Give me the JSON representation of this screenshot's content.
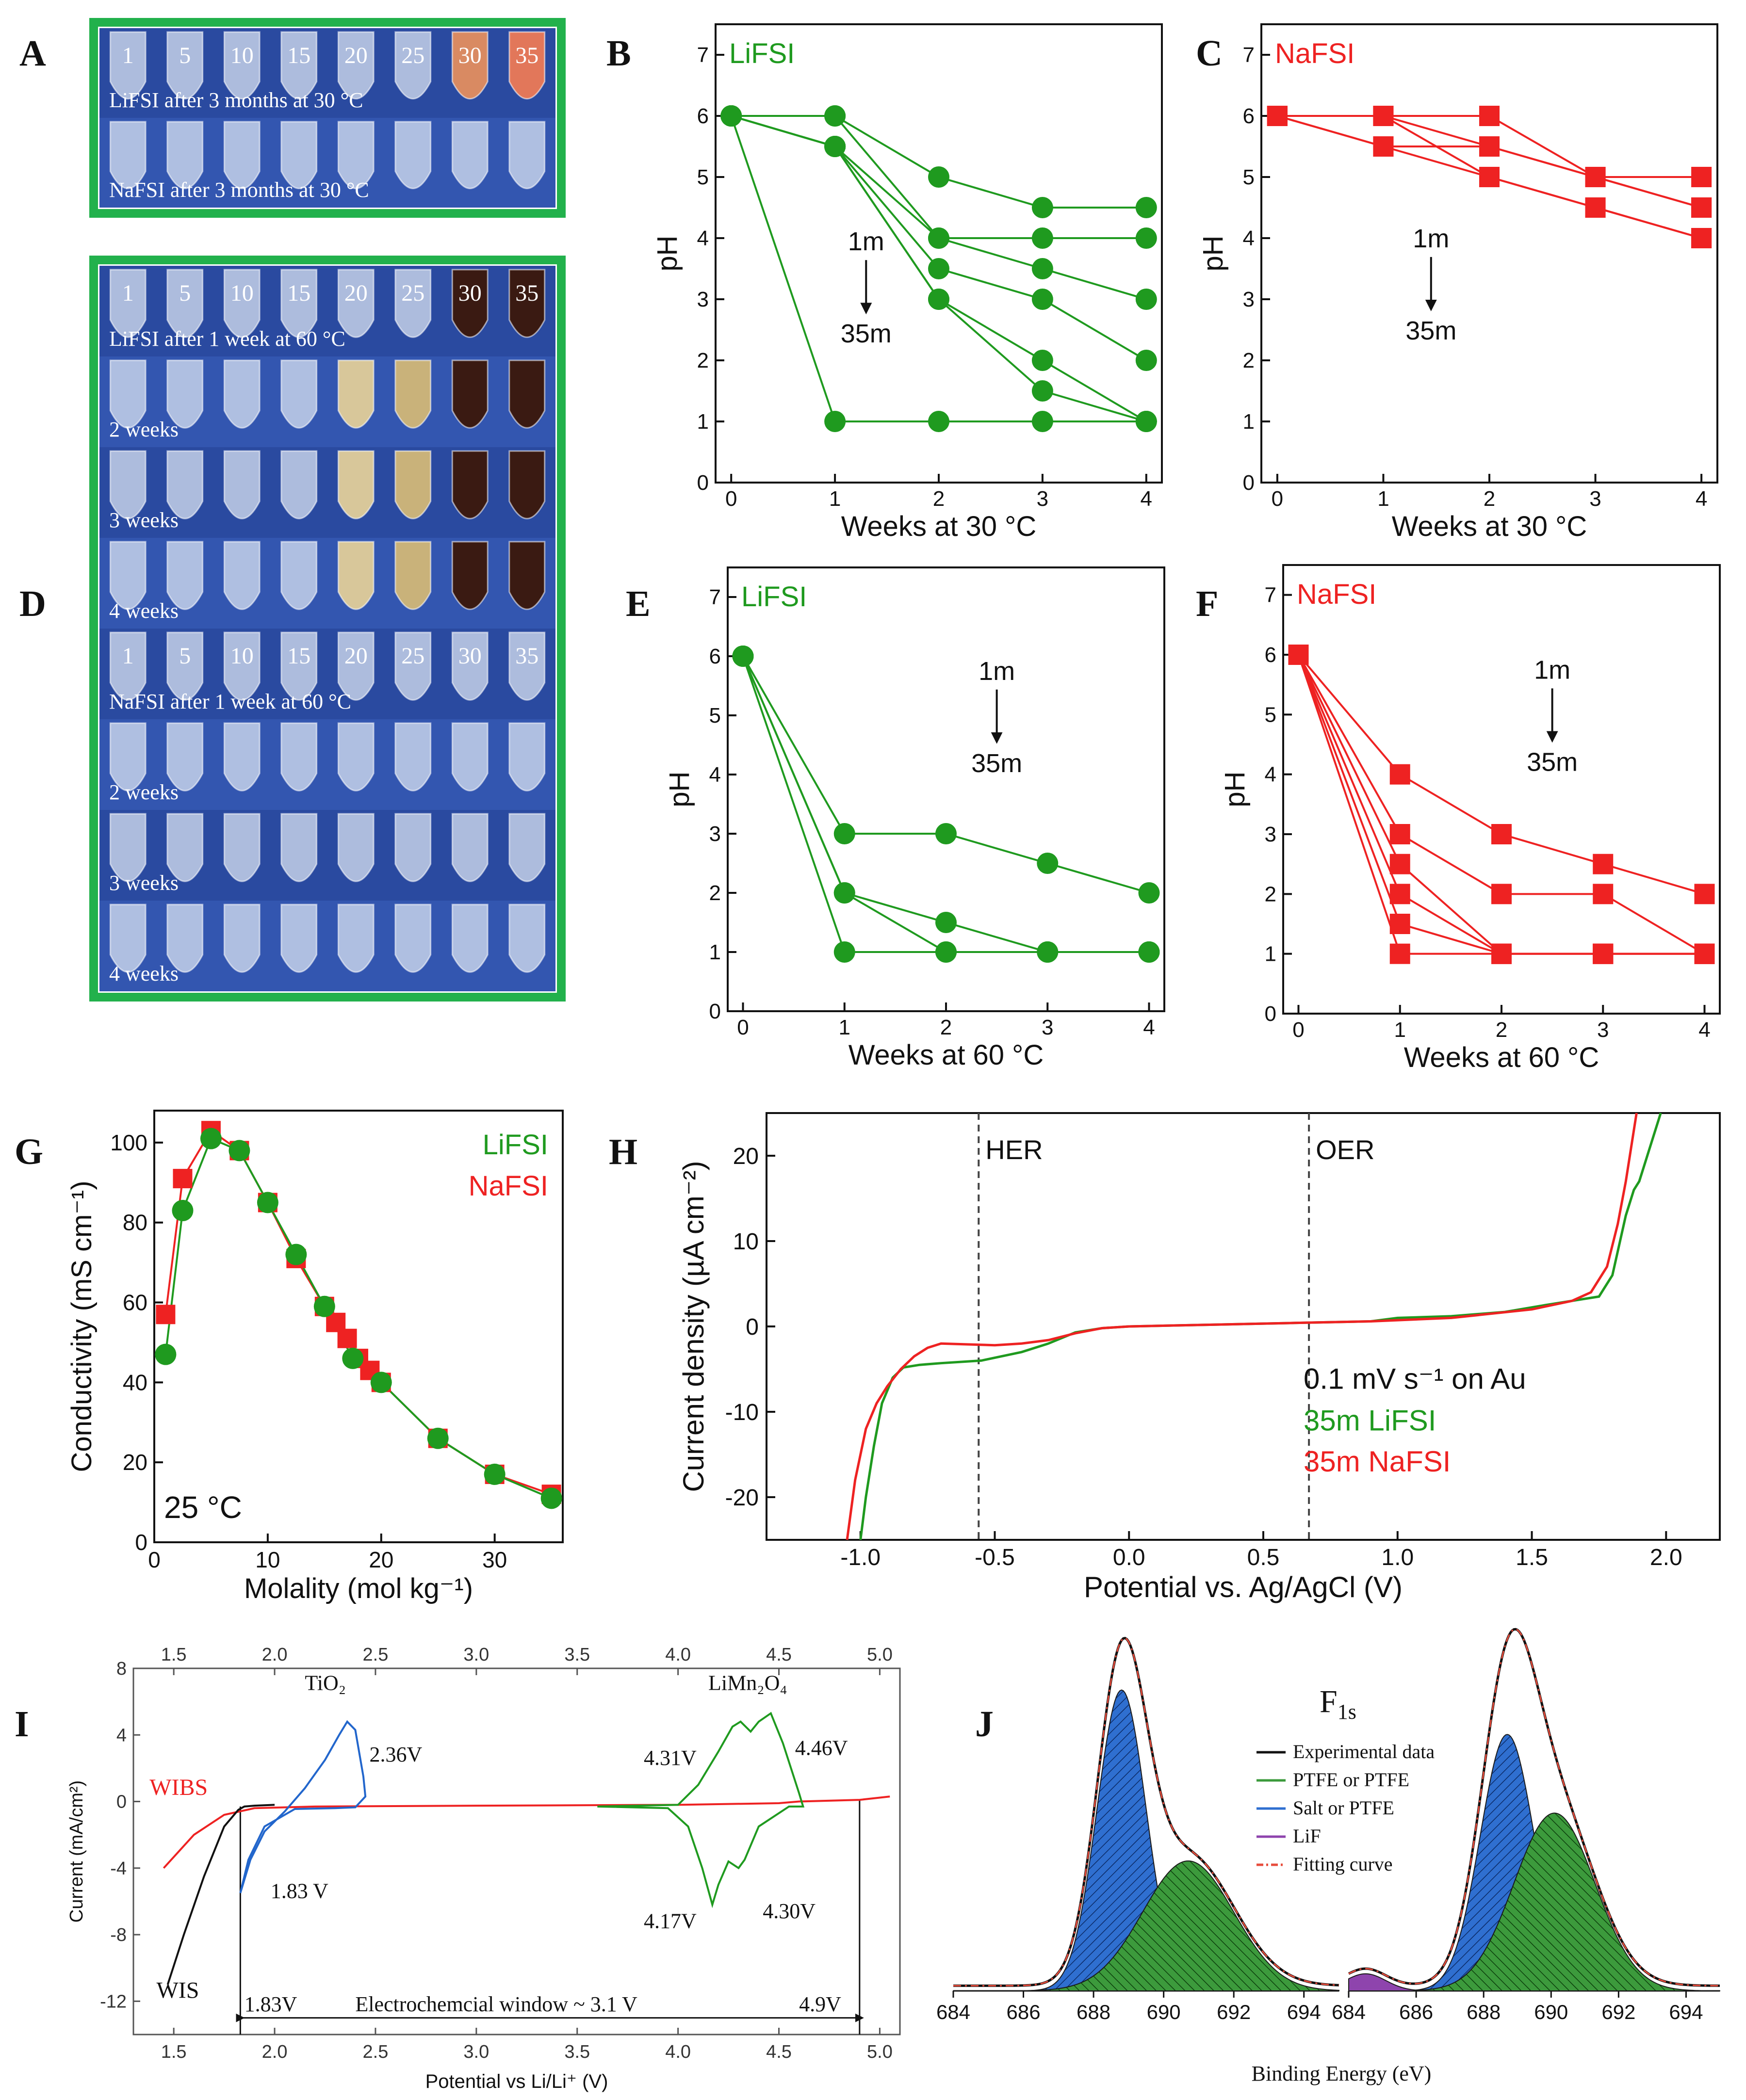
{
  "panel_letters": {
    "A": "A",
    "B": "B",
    "C": "C",
    "D": "D",
    "E": "E",
    "F": "F",
    "G": "G",
    "H": "H",
    "I": "I",
    "J": "J"
  },
  "colors": {
    "green": "#1f9a1f",
    "red": "#ee2222",
    "blue": "#2266cc",
    "black": "#111111",
    "photo_frame": "#22b14c",
    "photo_bg": "#2d4fa8"
  },
  "photos": {
    "A": {
      "tube_labels": [
        "1",
        "5",
        "10",
        "15",
        "20",
        "25",
        "30",
        "35"
      ],
      "row_labels": [
        "LiFSI after 3 months at 30 °C",
        "NaFSI after 3 months at 30 °C"
      ],
      "discolored": [
        [
          6,
          "#d98a62"
        ],
        [
          7,
          "#e2775a"
        ]
      ]
    },
    "D": {
      "tube_labels": [
        "1",
        "5",
        "10",
        "15",
        "20",
        "25",
        "30",
        "35"
      ],
      "row_labels": [
        "LiFSI after 1 week at 60 °C",
        "2 weeks",
        "3 weeks",
        "4 weeks",
        "NaFSI after 1 week at 60 °C",
        "2 weeks",
        "3 weeks",
        "4 weeks"
      ]
    }
  },
  "chart_data": [
    {
      "id": "B",
      "type": "line",
      "label": "LiFSI",
      "xlabel": "Weeks at 30 °C",
      "ylabel": "pH",
      "xlim": [
        0,
        4
      ],
      "ylim": [
        0,
        7.5
      ],
      "xticks": [
        0,
        1,
        2,
        3,
        4
      ],
      "yticks": [
        0,
        1,
        2,
        3,
        4,
        5,
        6,
        7
      ],
      "marker": "circle",
      "color": "green",
      "annotation": {
        "from": "1m",
        "to": "35m"
      },
      "x": [
        0,
        1,
        2,
        3,
        4
      ],
      "series": [
        [
          6,
          6,
          5,
          4.5,
          4.5
        ],
        [
          6,
          6,
          4,
          4,
          4
        ],
        [
          6,
          5.5,
          4,
          3.5,
          3
        ],
        [
          6,
          5.5,
          3.5,
          3,
          2
        ],
        [
          6,
          5.5,
          3,
          2,
          1
        ],
        [
          6,
          5.5,
          3,
          1.5,
          1
        ],
        [
          6,
          1,
          1,
          1,
          1
        ]
      ]
    },
    {
      "id": "C",
      "type": "line",
      "label": "NaFSI",
      "xlabel": "Weeks at 30 °C",
      "ylabel": "pH",
      "xlim": [
        0,
        4
      ],
      "ylim": [
        0,
        7.5
      ],
      "xticks": [
        0,
        1,
        2,
        3,
        4
      ],
      "yticks": [
        0,
        1,
        2,
        3,
        4,
        5,
        6,
        7
      ],
      "marker": "square",
      "color": "red",
      "annotation": {
        "from": "1m",
        "to": "35m"
      },
      "x": [
        0,
        1,
        2,
        3,
        4
      ],
      "series": [
        [
          6,
          6,
          6,
          5,
          5
        ],
        [
          6,
          6,
          5.5,
          5,
          4.5
        ],
        [
          6,
          5.5,
          5.5,
          5,
          4.5
        ],
        [
          6,
          5.5,
          5,
          4.5,
          4
        ],
        [
          6,
          6,
          5,
          4.5,
          4
        ]
      ]
    },
    {
      "id": "E",
      "type": "line",
      "label": "LiFSI",
      "xlabel": "Weeks at 60 °C",
      "ylabel": "pH",
      "xlim": [
        0,
        4
      ],
      "ylim": [
        0,
        7.5
      ],
      "xticks": [
        0,
        1,
        2,
        3,
        4
      ],
      "yticks": [
        0,
        1,
        2,
        3,
        4,
        5,
        6,
        7
      ],
      "marker": "circle",
      "color": "green",
      "annotation": {
        "from": "1m",
        "to": "35m"
      },
      "x": [
        0,
        1,
        2,
        3,
        4
      ],
      "series": [
        [
          6,
          3,
          3,
          2.5,
          2
        ],
        [
          6,
          2,
          1.5,
          1,
          1
        ],
        [
          6,
          2,
          1,
          1,
          1
        ],
        [
          6,
          1,
          1,
          1,
          1
        ]
      ]
    },
    {
      "id": "F",
      "type": "line",
      "label": "NaFSI",
      "xlabel": "Weeks at 60 °C",
      "ylabel": "pH",
      "xlim": [
        0,
        4
      ],
      "ylim": [
        0,
        7.5
      ],
      "xticks": [
        0,
        1,
        2,
        3,
        4
      ],
      "yticks": [
        0,
        1,
        2,
        3,
        4,
        5,
        6,
        7
      ],
      "marker": "square",
      "color": "red",
      "annotation": {
        "from": "1m",
        "to": "35m"
      },
      "x": [
        0,
        1,
        2,
        3,
        4
      ],
      "series": [
        [
          6,
          4,
          3,
          2.5,
          2
        ],
        [
          6,
          3,
          2,
          2,
          1
        ],
        [
          6,
          2.5,
          1,
          1,
          1
        ],
        [
          6,
          2,
          1,
          1,
          1
        ],
        [
          6,
          1.5,
          1,
          1,
          1
        ],
        [
          6,
          1,
          1,
          1,
          1
        ]
      ]
    },
    {
      "id": "G",
      "type": "line",
      "xlabel": "Molality (mol kg⁻¹)",
      "ylabel": "Conductivity (mS cm⁻¹)",
      "xlim": [
        0,
        36
      ],
      "ylim": [
        0,
        108
      ],
      "xticks": [
        0,
        10,
        20,
        30
      ],
      "yticks": [
        0,
        20,
        40,
        60,
        80,
        100
      ],
      "annotation": "25 °C",
      "series": [
        {
          "name": "LiFSI",
          "color": "green",
          "marker": "circle",
          "x": [
            1,
            2.5,
            5,
            7.5,
            10,
            12.5,
            15,
            17.5,
            20,
            25,
            30,
            35
          ],
          "y": [
            47,
            83,
            101,
            98,
            85,
            72,
            59,
            46,
            40,
            26,
            17,
            11
          ]
        },
        {
          "name": "NaFSI",
          "color": "red",
          "marker": "square",
          "x": [
            1,
            2.5,
            5,
            7.5,
            10,
            12.5,
            15,
            16,
            17,
            18,
            19,
            20,
            25,
            30,
            35
          ],
          "y": [
            57,
            91,
            103,
            98,
            85,
            71,
            59,
            55,
            51,
            46,
            43,
            40,
            26,
            17,
            12
          ]
        }
      ]
    },
    {
      "id": "H",
      "type": "line",
      "xlabel": "Potential vs. Ag/AgCl (V)",
      "ylabel": "Current density (µA cm⁻²)",
      "xlim": [
        -1.35,
        2.2
      ],
      "ylim": [
        -25,
        25
      ],
      "xticks": [
        -1.0,
        -0.5,
        0.0,
        0.5,
        1.0,
        1.5,
        2.0
      ],
      "yticks": [
        -20,
        -10,
        0,
        10,
        20
      ],
      "xtick_labels": [
        "-1.0",
        "-0.5",
        "0.0",
        "0.5",
        "1.0",
        "1.5",
        "2.0"
      ],
      "vlines": [
        {
          "x": -0.56,
          "label": "HER"
        },
        {
          "x": 0.67,
          "label": "OER"
        }
      ],
      "legend": {
        "title": "0.1 mV s⁻¹ on Au",
        "entries": [
          "35m LiFSI",
          "35m NaFSI"
        ]
      },
      "series": [
        {
          "name": "35m LiFSI",
          "color": "green",
          "x": [
            -1.0,
            -0.98,
            -0.95,
            -0.92,
            -0.88,
            -0.84,
            -0.78,
            -0.7,
            -0.55,
            -0.4,
            -0.3,
            -0.2,
            -0.1,
            0.0,
            0.3,
            0.6,
            0.9,
            1.0,
            1.2,
            1.4,
            1.55,
            1.65,
            1.75,
            1.8,
            1.85,
            1.88,
            1.9,
            1.93,
            1.96,
            1.98
          ],
          "y": [
            -25,
            -20,
            -14,
            -9,
            -6,
            -4.8,
            -4.5,
            -4.3,
            -4.0,
            -3.0,
            -2,
            -0.7,
            -0.2,
            0,
            0.2,
            0.4,
            0.6,
            1,
            1.2,
            1.7,
            2.5,
            3,
            3.5,
            6,
            13,
            16,
            17,
            20,
            23,
            25
          ]
        },
        {
          "name": "35m NaFSI",
          "color": "red",
          "x": [
            -1.05,
            -1.02,
            -0.98,
            -0.94,
            -0.9,
            -0.85,
            -0.8,
            -0.75,
            -0.7,
            -0.6,
            -0.5,
            -0.4,
            -0.3,
            -0.2,
            -0.1,
            0.0,
            0.3,
            0.6,
            0.9,
            1.2,
            1.5,
            1.65,
            1.72,
            1.78,
            1.82,
            1.85,
            1.87,
            1.89
          ],
          "y": [
            -25,
            -18,
            -12,
            -9,
            -7,
            -5,
            -3.5,
            -2.5,
            -2,
            -2.1,
            -2.2,
            -2.0,
            -1.6,
            -0.8,
            -0.2,
            0,
            0.2,
            0.4,
            0.6,
            1,
            2,
            3,
            4,
            7,
            12,
            17,
            21,
            25
          ]
        }
      ]
    },
    {
      "id": "I",
      "type": "line",
      "xlabel": "Potential vs Li/Li⁺ (V)",
      "ylabel": "Current (mA/cm²)",
      "xlim": [
        1.3,
        5.1
      ],
      "ylim": [
        -14,
        8
      ],
      "xticks": [
        1.5,
        2.0,
        2.5,
        3.0,
        3.5,
        4.0,
        4.5,
        5.0
      ],
      "yticks": [
        -12,
        -8,
        -4,
        0,
        4,
        8
      ],
      "xtick_labels": [
        "1.5",
        "2.0",
        "2.5",
        "3.0",
        "3.5",
        "4.0",
        "4.5",
        "5.0"
      ],
      "labels": {
        "tio2": "TiO₂",
        "limn": "LiMn₂O₄",
        "wibs": "WIBS",
        "wis": "WIS",
        "v236": "2.36V",
        "v183": "1.83 V",
        "v431": "4.31V",
        "v446": "4.46V",
        "v417": "4.17V",
        "v430": "4.30V",
        "window_left": "1.83V",
        "window_text": "Electrochemcial window ~ 3.1 V",
        "window_right": "4.9V"
      },
      "series": [
        {
          "name": "WIBS",
          "color": "red",
          "x": [
            1.45,
            1.6,
            1.75,
            1.9,
            2.2,
            3,
            4,
            4.5,
            4.6,
            4.9,
            5.05
          ],
          "y": [
            -4,
            -2,
            -0.8,
            -0.4,
            -0.3,
            -0.25,
            -0.2,
            -0.1,
            0,
            0.1,
            0.3
          ]
        },
        {
          "name": "WIS",
          "color": "black",
          "x": [
            1.47,
            1.55,
            1.65,
            1.75,
            1.82,
            1.85,
            1.9,
            2.0
          ],
          "y": [
            -11,
            -8,
            -4.5,
            -1.5,
            -0.5,
            -0.3,
            -0.25,
            -0.2
          ]
        },
        {
          "name": "TiO2",
          "color": "blue",
          "x": [
            1.83,
            1.88,
            1.95,
            2.05,
            2.15,
            2.25,
            2.32,
            2.36,
            2.4,
            2.44,
            2.45,
            2.4,
            2.3,
            2.1,
            1.95,
            1.87,
            1.83
          ],
          "y": [
            -5.5,
            -3.5,
            -1.8,
            -0.6,
            0.8,
            2.5,
            4,
            4.8,
            4.3,
            1.5,
            0.3,
            -0.35,
            -0.4,
            -0.45,
            -1.5,
            -3.5,
            -5.5
          ]
        },
        {
          "name": "LiMn2O4",
          "color": "green",
          "x": [
            3.6,
            4.0,
            4.1,
            4.2,
            4.27,
            4.31,
            4.36,
            4.4,
            4.46,
            4.52,
            4.6,
            4.62,
            4.55,
            4.4,
            4.33,
            4.3,
            4.25,
            4.2,
            4.17,
            4.12,
            4.05,
            3.95,
            3.6
          ],
          "y": [
            -0.3,
            -0.2,
            1,
            3,
            4.5,
            4.8,
            4.2,
            4.8,
            5.3,
            3.5,
            0.5,
            -0.3,
            -0.3,
            -1.5,
            -3.5,
            -4,
            -3.6,
            -5,
            -6.2,
            -4,
            -1.5,
            -0.4,
            -0.3
          ]
        }
      ]
    },
    {
      "id": "J",
      "type": "area",
      "title": "F",
      "title_sub": "1s",
      "xlabel": "Binding Energy (eV)",
      "xlim": [
        684,
        695
      ],
      "xticks": [
        684,
        686,
        688,
        690,
        692,
        694
      ],
      "legend": [
        "Experimental data",
        "PTFE or PTFE",
        "Salt or PTFE",
        "LiF",
        "Fitting curve"
      ],
      "series": [
        {
          "name": "Salt or PTFE",
          "color": "blue",
          "left": {
            "center": 688.8,
            "sigma": 0.7,
            "amp": 0.88
          },
          "right": {
            "center": 688.7,
            "sigma": 0.8,
            "amp": 0.75
          }
        },
        {
          "name": "PTFE or PTFE",
          "color": "green",
          "left": {
            "center": 690.7,
            "sigma": 1.3,
            "amp": 0.38
          },
          "right": {
            "center": 690.1,
            "sigma": 1.2,
            "amp": 0.52
          }
        },
        {
          "name": "LiF",
          "color": "#9b59b6",
          "left": {
            "center": 685,
            "sigma": 0.5,
            "amp": 0.0
          },
          "right": {
            "center": 684.5,
            "sigma": 0.6,
            "amp": 0.05
          }
        }
      ]
    }
  ]
}
